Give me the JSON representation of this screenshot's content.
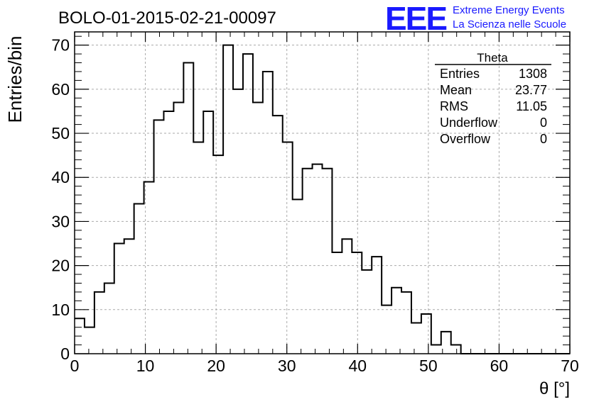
{
  "title": "BOLO-01-2015-02-21-00097",
  "logo": {
    "text": "EEE",
    "line1": "Extreme Energy Events",
    "line2": "La Scienza nelle Scuole",
    "color": "#1a1aff"
  },
  "stats": {
    "name": "Theta",
    "rows": [
      {
        "label": "Entries",
        "value": "1308"
      },
      {
        "label": "Mean",
        "value": "23.77"
      },
      {
        "label": "RMS",
        "value": "11.05"
      },
      {
        "label": "Underflow",
        "value": "0"
      },
      {
        "label": "Overflow",
        "value": "0"
      }
    ]
  },
  "chart_data": {
    "type": "histogram",
    "title": "BOLO-01-2015-02-21-00097",
    "xlabel": "θ [°]",
    "ylabel": "Entries/bin",
    "xlim": [
      0,
      70
    ],
    "ylim": [
      0,
      73
    ],
    "bin_width": 1.4,
    "x_start": 0,
    "grid": true,
    "line_color": "#000000",
    "xticks": [
      "0",
      "10",
      "20",
      "30",
      "40",
      "50",
      "60",
      "70"
    ],
    "yticks": [
      "0",
      "10",
      "20",
      "30",
      "40",
      "50",
      "60",
      "70"
    ],
    "values": [
      8,
      6,
      14,
      16,
      25,
      26,
      34,
      39,
      53,
      55,
      57,
      66,
      48,
      55,
      45,
      70,
      60,
      68,
      57,
      64,
      54,
      48,
      35,
      42,
      43,
      42,
      23,
      26,
      23,
      19,
      22,
      11,
      15,
      14,
      7,
      9,
      2,
      5,
      2,
      0,
      0,
      0,
      0,
      0,
      0,
      0,
      0,
      0,
      0,
      0
    ]
  }
}
